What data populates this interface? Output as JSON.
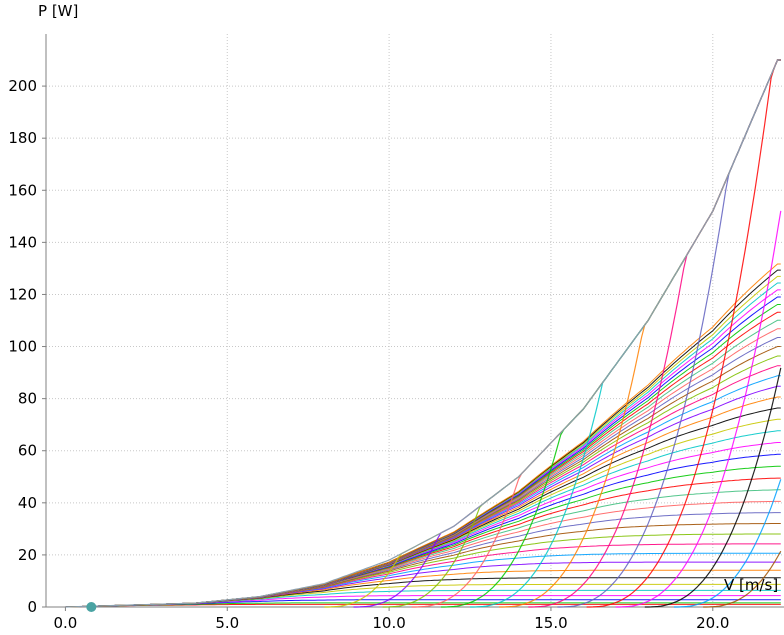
{
  "chart_data": {
    "type": "line",
    "title": "",
    "xlabel": "V [m/s]",
    "ylabel": "P [W]",
    "xlim": [
      -0.6,
      22.2
    ],
    "ylim": [
      0,
      220
    ],
    "xticks": [
      "0.0",
      "5.0",
      "10.0",
      "15.0",
      "20.0"
    ],
    "xtick_values": [
      0,
      5,
      10,
      15,
      20
    ],
    "yticks": [
      "0",
      "20",
      "40",
      "60",
      "80",
      "100",
      "120",
      "140",
      "160",
      "180",
      "200"
    ],
    "ytick_values": [
      0,
      20,
      40,
      60,
      80,
      100,
      120,
      140,
      160,
      180,
      200
    ],
    "grid": true,
    "grid_style": "dotted",
    "legend": "none",
    "marker": {
      "x": 0.8,
      "y": 0,
      "color": "#4aa3a3"
    },
    "envelope": {
      "description_free": true,
      "x": [
        0,
        4,
        6,
        8,
        10,
        12,
        14,
        16,
        18,
        20,
        22
      ],
      "y": [
        0,
        1.5,
        4,
        9,
        18,
        31,
        50,
        76,
        110,
        152,
        210
      ]
    },
    "families": [
      {
        "kind": "cubic-limited",
        "count": 40
      },
      {
        "kind": "fan",
        "count": 14
      }
    ],
    "series_colors": [
      "#ff0000",
      "#00c800",
      "#0000ff",
      "#ff00ff",
      "#00c8c8",
      "#c8c800",
      "#000000",
      "#ff8000",
      "#8000ff",
      "#00a0ff",
      "#ff0080",
      "#80c000",
      "#a05000",
      "#6060c0",
      "#ff6060",
      "#40c080"
    ]
  }
}
